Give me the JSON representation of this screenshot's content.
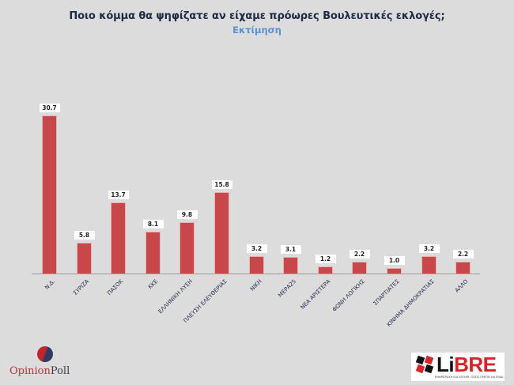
{
  "header": {
    "title": "Ποιο κόμμα θα ψηφίζατε αν είχαμε πρόωρες Βουλευτικές εκλογές;",
    "subtitle": "Εκτίμηση"
  },
  "chart_data": {
    "type": "bar",
    "title": "Ποιο κόμμα θα ψηφίζατε αν είχαμε πρόωρες Βουλευτικές εκλογές;",
    "subtitle": "Εκτίμηση",
    "xlabel": "",
    "ylabel": "",
    "categories": [
      "Ν.Δ.",
      "ΣΥΡΙΖΑ",
      "ΠΑΣΟΚ",
      "ΚΚΕ",
      "ΕΛΛΗΝΙΚΗ ΛΥΣΗ",
      "ΠΛΕΥΣΗ ΕΛΕΥΘΕΡΙΑΣ",
      "ΝΙΚΗ",
      "ΜΕΡΑ25",
      "ΝΕΑ ΑΡΙΣΤΕΡΑ",
      "ΦΩΝΗ ΛΟΓΙΚΗΣ",
      "ΣΠΑΡΤΙΑΤΕΣ",
      "ΚΙΝΗΜΑ ΔΗΜΟΚΡΑΤΙΑΣ",
      "ΑΛΛΟ"
    ],
    "values": [
      30.7,
      5.8,
      13.7,
      8.1,
      9.8,
      15.8,
      3.2,
      3.1,
      1.2,
      2.2,
      1.0,
      3.2,
      2.2
    ],
    "value_labels": [
      "30.7",
      "5.8",
      "13.7",
      "8.1",
      "9.8",
      "15.8",
      "3.2",
      "3.1",
      "1.2",
      "2.2",
      "1.0",
      "3.2",
      "2.2"
    ],
    "ylim": [
      0,
      32
    ],
    "grid": false,
    "legend": null,
    "bar_color": "#c8474a"
  },
  "footer": {
    "left_logo": {
      "part1": "Opinion",
      "part2": "Poll"
    },
    "right_logo": {
      "part1": "Li",
      "part2": "BRE",
      "tagline": "ΕΝΗΜΕΡΩΣΗ ΚΑΙ ΑΠΟΨΗ, ΟΠΩΣ ΠΡΕΠΕΙ ΝΑ ΕΙΝΑΙ."
    }
  }
}
